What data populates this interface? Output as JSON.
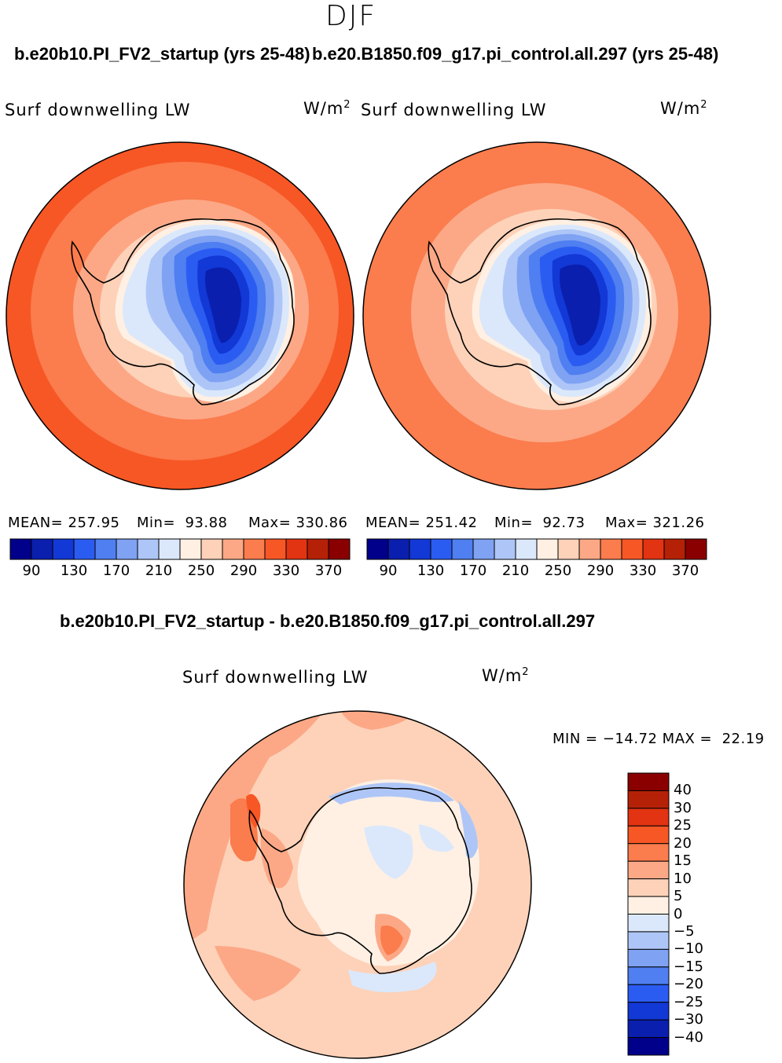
{
  "season": "DJF",
  "variable_label": "Surf downwelling LW",
  "units": {
    "base": "W/m",
    "exp": "2"
  },
  "panels": [
    {
      "title": "b.e20b10.PI_FV2_startup (yrs 25-48)",
      "mean": "MEAN= 257.95",
      "min": "Min=  93.88",
      "max": "Max= 330.86"
    },
    {
      "title": "b.e20.B1850.f09_g17.pi_control.all.297 (yrs 25-48)",
      "mean": "MEAN= 251.42",
      "min": "Min=  92.73",
      "max": "Max= 321.26"
    }
  ],
  "colorbar_top": {
    "colors": [
      "#00008b",
      "#0a1fae",
      "#1238d6",
      "#2b5cf2",
      "#4f7ff0",
      "#7fa2f3",
      "#aec6f7",
      "#dbe8fb",
      "#fff0e3",
      "#fdd2b9",
      "#fca886",
      "#fb7c4d",
      "#f75725",
      "#e23312",
      "#b52106",
      "#8a0000"
    ],
    "tick_labels": [
      "90",
      "130",
      "170",
      "210",
      "250",
      "290",
      "330",
      "370"
    ]
  },
  "difference": {
    "title": "b.e20b10.PI_FV2_startup - b.e20.B1850.f09_g17.pi_control.all.297",
    "minmax": "MIN = −14.72 MAX =  22.19",
    "colors": [
      "#8a0000",
      "#b52106",
      "#e23312",
      "#f75725",
      "#fb7c4d",
      "#fca886",
      "#fdd2b9",
      "#fff0e3",
      "#dbe8fb",
      "#aec6f7",
      "#7fa2f3",
      "#4f7ff0",
      "#2b5cf2",
      "#1238d6",
      "#0a1fae",
      "#00008b"
    ],
    "tick_labels": [
      "40",
      "30",
      "25",
      "20",
      "15",
      "10",
      "5",
      "0",
      "−5",
      "−10",
      "−15",
      "−20",
      "−25",
      "−30",
      "−40"
    ]
  }
}
